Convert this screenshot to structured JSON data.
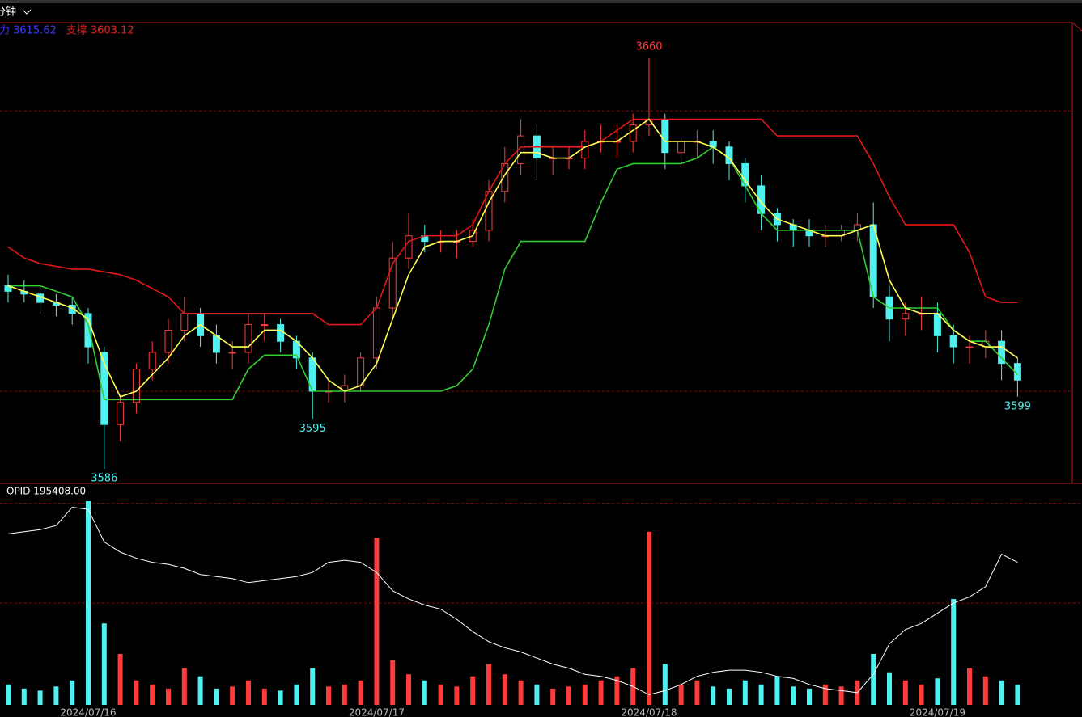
{
  "chart_data": {
    "type": "candlestick",
    "period": "分钟",
    "legend": [
      {
        "name": "阻力",
        "value": 3615.62,
        "color": "#3a3aff"
      },
      {
        "name": "支撑",
        "value": 3603.12,
        "color": "#e02020"
      }
    ],
    "categories": [
      null,
      null,
      null,
      null,
      null,
      "2024/07/16",
      null,
      null,
      null,
      null,
      null,
      null,
      null,
      null,
      null,
      null,
      null,
      null,
      null,
      null,
      null,
      null,
      null,
      "2024/07/17",
      null,
      null,
      null,
      null,
      null,
      null,
      null,
      null,
      null,
      null,
      null,
      null,
      null,
      null,
      null,
      null,
      "2024/07/18",
      null,
      null,
      null,
      null,
      null,
      null,
      null,
      null,
      null,
      null,
      null,
      null,
      null,
      null,
      null,
      null,
      null,
      "2024/07/19",
      null,
      null,
      null,
      null,
      null
    ],
    "open": [
      3619,
      3618,
      3617.5,
      3616,
      3615.5,
      3614,
      3607,
      3594,
      3598,
      3604,
      3607,
      3611,
      3614,
      3610,
      3607,
      3607,
      3612,
      3612,
      3609,
      3606,
      3600,
      3600,
      3601,
      3606,
      3615,
      3624,
      3628,
      3627,
      3627,
      3627,
      3629,
      3636,
      3641,
      3646,
      3642,
      3642,
      3642,
      3645,
      3645,
      3645,
      3648,
      3649,
      3643,
      3645,
      3645,
      3644,
      3641,
      3637,
      3632,
      3630,
      3629,
      3628,
      3628,
      3629,
      3630,
      3617,
      3613,
      3614,
      3614,
      3610,
      3608,
      3608,
      3609,
      3605
    ],
    "high": [
      3621,
      3620,
      3619,
      3617.5,
      3617,
      3615,
      3608,
      3599,
      3605,
      3609,
      3613,
      3617,
      3615,
      3612,
      3609,
      3614,
      3614,
      3613,
      3610,
      3607,
      3602,
      3603,
      3607,
      3617,
      3627,
      3632,
      3630,
      3629,
      3629,
      3631,
      3638,
      3644,
      3649,
      3648,
      3644,
      3644,
      3647,
      3648,
      3648,
      3650,
      3660,
      3650,
      3646,
      3647,
      3647,
      3645,
      3642,
      3639,
      3633,
      3631,
      3631,
      3630,
      3630,
      3632,
      3634,
      3619,
      3616,
      3617,
      3616,
      3612,
      3610,
      3611,
      3611,
      3606
    ],
    "low": [
      3616,
      3616,
      3614,
      3613.5,
      3612,
      3605,
      3586,
      3591,
      3596,
      3602,
      3605,
      3609,
      3608,
      3605,
      3604,
      3605,
      3609,
      3607,
      3604,
      3595,
      3598,
      3598,
      3600,
      3604,
      3613,
      3622,
      3625,
      3625,
      3624,
      3626,
      3627,
      3634,
      3639,
      3638,
      3639,
      3640,
      3640,
      3643,
      3642,
      3643,
      3646,
      3640,
      3641,
      3642,
      3641,
      3638,
      3634,
      3629,
      3627,
      3626,
      3626,
      3626,
      3627,
      3627,
      3615,
      3609,
      3610,
      3611,
      3607,
      3605,
      3605,
      3606,
      3602,
      3599
    ],
    "close": [
      3618,
      3617.5,
      3616,
      3615.5,
      3614,
      3608,
      3594,
      3598,
      3604,
      3607,
      3611,
      3614,
      3610,
      3607,
      3607,
      3612,
      3612,
      3609,
      3606,
      3600,
      3600,
      3601,
      3606,
      3615,
      3624,
      3628,
      3627,
      3627,
      3627,
      3629,
      3636,
      3641,
      3646,
      3642,
      3642,
      3642,
      3645,
      3645,
      3645,
      3648,
      3649,
      3643,
      3645,
      3645,
      3644,
      3641,
      3637,
      3632,
      3630,
      3629,
      3628,
      3628,
      3629,
      3630,
      3617,
      3613,
      3614,
      3614,
      3610,
      3608,
      3608,
      3609,
      3605,
      3602
    ],
    "up_color": "#ff3b3b",
    "down_color": "#4ff0f0",
    "ylim": [
      3583.4,
      3666.4
    ],
    "reference_lines": [
      3650.5,
      3600
    ],
    "peak_labels": [
      3660
    ],
    "trough_labels": [
      3586,
      3595,
      3599
    ],
    "lines": [
      {
        "color": "#e01818",
        "values": [
          3626,
          3624,
          3623,
          3622.5,
          3622,
          3622,
          3621.5,
          3621,
          3620,
          3618.5,
          3617,
          3614,
          3614,
          3614,
          3614,
          3614,
          3614,
          3614,
          3614,
          3614,
          3612,
          3612,
          3612,
          3615,
          3623,
          3627,
          3628,
          3628,
          3628,
          3630,
          3636,
          3641,
          3644,
          3644,
          3644,
          3644,
          3644,
          3645,
          3647,
          3649,
          3649,
          3649,
          3649,
          3649,
          3649,
          3649,
          3649,
          3649,
          3646,
          3646,
          3646,
          3646,
          3646,
          3646,
          3641,
          3635,
          3630,
          3630,
          3630,
          3630,
          3625,
          3617,
          3616,
          3616
        ]
      },
      {
        "color": "#33cc33",
        "values": [
          3619,
          3619,
          3619,
          3618,
          3617,
          3612,
          3598.5,
          3598.5,
          3598.5,
          3598.5,
          3598.5,
          3598.5,
          3598.5,
          3598.5,
          3598.5,
          3604,
          3606.5,
          3606.5,
          3606.5,
          3600,
          3600,
          3600,
          3600,
          3600,
          3600,
          3600,
          3600,
          3600,
          3601,
          3604,
          3612,
          3622,
          3627,
          3627,
          3627,
          3627,
          3627,
          3634,
          3640,
          3641,
          3641,
          3641,
          3641,
          3642,
          3644,
          3642,
          3637,
          3632,
          3629,
          3629,
          3629,
          3629,
          3629,
          3629,
          3617,
          3615,
          3615,
          3615,
          3615,
          3611,
          3609,
          3609,
          3606,
          3603
        ]
      },
      {
        "color": "#ffff55",
        "values": [
          3619,
          3618,
          3617,
          3616,
          3615,
          3613,
          3605,
          3599,
          3600,
          3603,
          3606,
          3610,
          3612,
          3610,
          3608,
          3608,
          3611,
          3611,
          3609,
          3606,
          3602,
          3600,
          3601,
          3605,
          3613,
          3621,
          3626,
          3627,
          3627,
          3628,
          3634,
          3639,
          3643,
          3643,
          3642,
          3642,
          3644,
          3645,
          3645,
          3647,
          3649,
          3645,
          3645,
          3645,
          3644,
          3642,
          3638,
          3634,
          3631,
          3630,
          3629,
          3628,
          3628,
          3629,
          3630,
          3620,
          3615,
          3614,
          3614,
          3611,
          3609,
          3608,
          3608,
          3606
        ]
      }
    ],
    "indicator_title": "OPID 195408.00",
    "volume": [
      10,
      8,
      7,
      9,
      12,
      100,
      40,
      25,
      12,
      10,
      8,
      18,
      14,
      8,
      9,
      12,
      8,
      7,
      10,
      18,
      9,
      10,
      12,
      82,
      22,
      15,
      12,
      10,
      9,
      14,
      20,
      15,
      12,
      10,
      8,
      9,
      10,
      12,
      14,
      18,
      85,
      20,
      10,
      12,
      9,
      8,
      12,
      10,
      14,
      9,
      8,
      10,
      9,
      12,
      25,
      16,
      12,
      10,
      13,
      52,
      18,
      14,
      12,
      10
    ],
    "volume_ylim": [
      0,
      100
    ],
    "volume_reference_lines": [
      99,
      50
    ],
    "opid": {
      "color": "#ffffff",
      "values": [
        84,
        85,
        86,
        88,
        97,
        96,
        80,
        75,
        72,
        70,
        69,
        67,
        64,
        63,
        62,
        60,
        61,
        62,
        63,
        65,
        70,
        71,
        70,
        65,
        56,
        52,
        49,
        47,
        42,
        36,
        31,
        28,
        26,
        23,
        20,
        18,
        15,
        14,
        12,
        9,
        5,
        7,
        10,
        14,
        16,
        17,
        17,
        16,
        14,
        13,
        10,
        8,
        7,
        6,
        15,
        30,
        37,
        40,
        45,
        50,
        53,
        58,
        74,
        70
      ]
    }
  }
}
